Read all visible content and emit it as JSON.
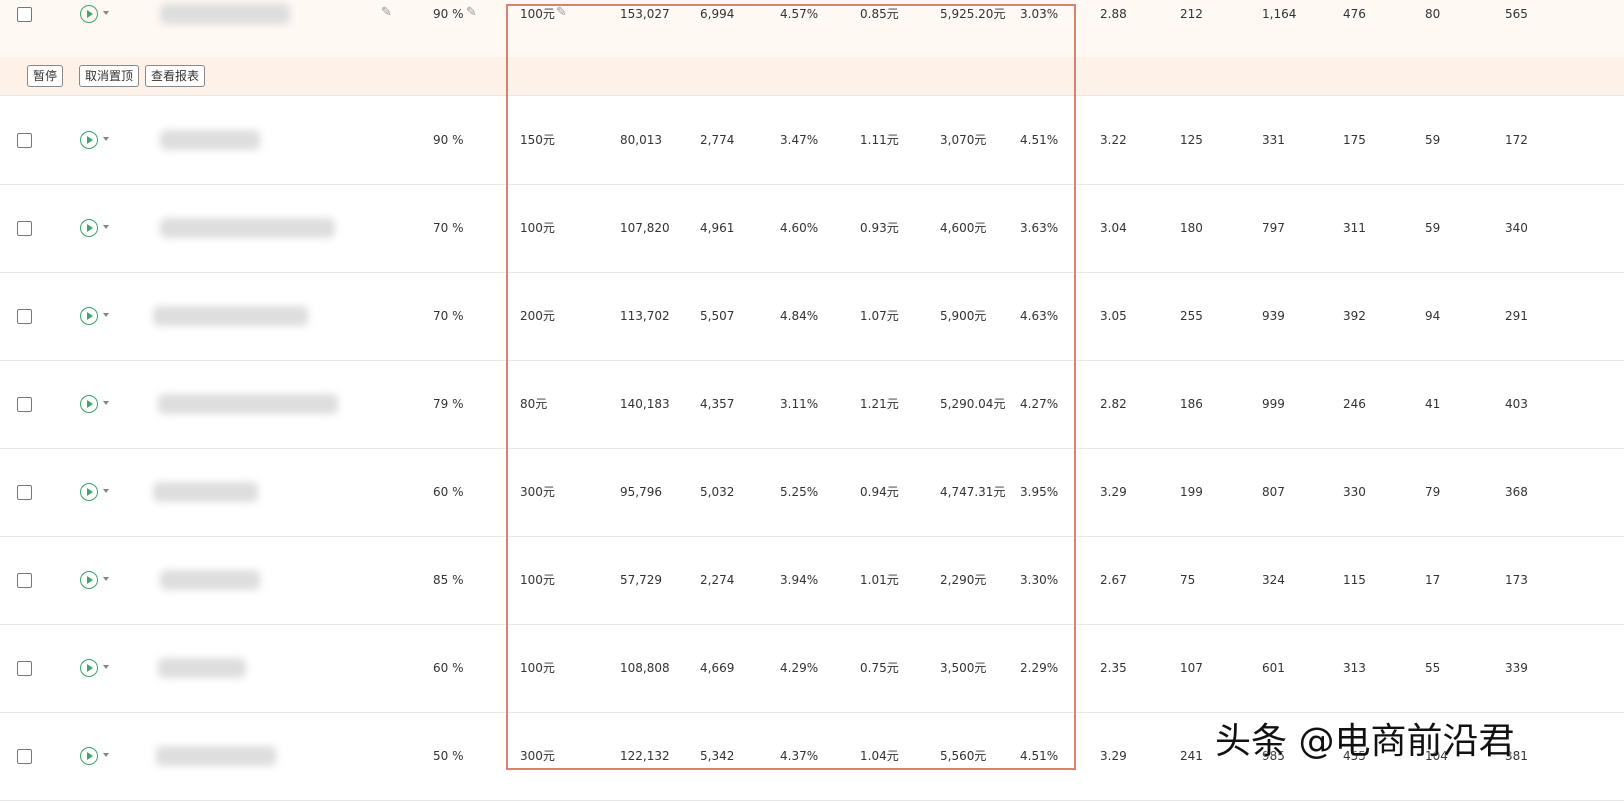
{
  "actions": [
    "暂停",
    "取消置顶",
    "查看报表"
  ],
  "table": {
    "rows": [
      [
        "90 %",
        "100元",
        "153,027",
        "6,994",
        "4.57%",
        "0.85元",
        "5,925.20元",
        "3.03%",
        "2.88",
        "212",
        "1,164",
        "476",
        "80",
        "565"
      ],
      [
        "90 %",
        "150元",
        "80,013",
        "2,774",
        "3.47%",
        "1.11元",
        "3,070元",
        "4.51%",
        "3.22",
        "125",
        "331",
        "175",
        "59",
        "172"
      ],
      [
        "70 %",
        "100元",
        "107,820",
        "4,961",
        "4.60%",
        "0.93元",
        "4,600元",
        "3.63%",
        "3.04",
        "180",
        "797",
        "311",
        "59",
        "340"
      ],
      [
        "70 %",
        "200元",
        "113,702",
        "5,507",
        "4.84%",
        "1.07元",
        "5,900元",
        "4.63%",
        "3.05",
        "255",
        "939",
        "392",
        "94",
        "291"
      ],
      [
        "79 %",
        "80元",
        "140,183",
        "4,357",
        "3.11%",
        "1.21元",
        "5,290.04元",
        "4.27%",
        "2.82",
        "186",
        "999",
        "246",
        "41",
        "403"
      ],
      [
        "60 %",
        "300元",
        "95,796",
        "5,032",
        "5.25%",
        "0.94元",
        "4,747.31元",
        "3.95%",
        "3.29",
        "199",
        "807",
        "330",
        "79",
        "368"
      ],
      [
        "85 %",
        "100元",
        "57,729",
        "2,274",
        "3.94%",
        "1.01元",
        "2,290元",
        "3.30%",
        "2.67",
        "75",
        "324",
        "115",
        "17",
        "173"
      ],
      [
        "60 %",
        "100元",
        "108,808",
        "4,669",
        "4.29%",
        "0.75元",
        "3,500元",
        "2.29%",
        "2.35",
        "107",
        "601",
        "313",
        "55",
        "339"
      ],
      [
        "50 %",
        "300元",
        "122,132",
        "5,342",
        "4.37%",
        "1.04元",
        "5,560元",
        "4.51%",
        "3.29",
        "241",
        "985",
        "455",
        "104",
        "381"
      ]
    ]
  },
  "watermark": "头条 @电商前沿君"
}
